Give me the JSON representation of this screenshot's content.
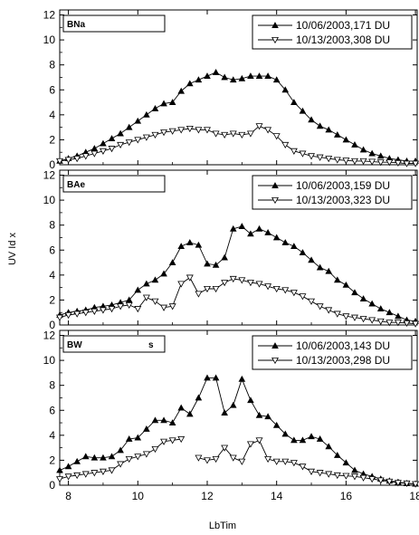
{
  "figure": {
    "xlabel": "LbTim",
    "ylabel": "UV Id    x"
  },
  "chart_data": [
    {
      "type": "line",
      "title": "BNa",
      "xlim": [
        7.75,
        18.05
      ],
      "ylim": [
        0,
        12.4
      ],
      "xticks": [
        8,
        10,
        12,
        14,
        16,
        18
      ],
      "yticks": [
        0,
        2,
        4,
        6,
        8,
        10,
        12
      ],
      "grid": false,
      "legend_position": "top-right",
      "series": [
        {
          "name": "10/06/2003,171 DU",
          "marker": "triangle-up-filled",
          "x": [
            7.75,
            8.0,
            8.25,
            8.5,
            8.75,
            9.0,
            9.25,
            9.5,
            9.75,
            10.0,
            10.25,
            10.5,
            10.75,
            11.0,
            11.25,
            11.5,
            11.75,
            12.0,
            12.25,
            12.5,
            12.75,
            13.0,
            13.25,
            13.5,
            13.75,
            14.0,
            14.25,
            14.5,
            14.75,
            15.0,
            15.25,
            15.5,
            15.75,
            16.0,
            16.25,
            16.5,
            16.75,
            17.0,
            17.25,
            17.5,
            17.75,
            18.0
          ],
          "y": [
            0.3,
            0.5,
            0.7,
            1.0,
            1.3,
            1.7,
            2.1,
            2.5,
            3.0,
            3.5,
            4.0,
            4.5,
            4.9,
            5.0,
            5.9,
            6.5,
            6.8,
            7.1,
            7.4,
            7.0,
            6.8,
            6.9,
            7.1,
            7.1,
            7.1,
            6.8,
            6.0,
            5.0,
            4.3,
            3.6,
            3.1,
            2.8,
            2.4,
            2.0,
            1.6,
            1.2,
            0.9,
            0.7,
            0.5,
            0.4,
            0.3,
            0.3
          ]
        },
        {
          "name": "10/13/2003,308 DU",
          "marker": "triangle-down-open",
          "x": [
            7.75,
            8.0,
            8.25,
            8.5,
            8.75,
            9.0,
            9.25,
            9.5,
            9.75,
            10.0,
            10.25,
            10.5,
            10.75,
            11.0,
            11.25,
            11.5,
            11.75,
            12.0,
            12.25,
            12.5,
            12.75,
            13.0,
            13.25,
            13.5,
            13.75,
            14.0,
            14.25,
            14.5,
            14.75,
            15.0,
            15.25,
            15.5,
            15.75,
            16.0,
            16.25,
            16.5,
            16.75,
            17.0,
            17.25,
            17.5,
            17.75,
            18.0
          ],
          "y": [
            0.3,
            0.4,
            0.5,
            0.7,
            0.9,
            1.1,
            1.3,
            1.6,
            1.8,
            2.0,
            2.2,
            2.4,
            2.6,
            2.7,
            2.8,
            2.9,
            2.8,
            2.8,
            2.5,
            2.4,
            2.5,
            2.4,
            2.5,
            3.1,
            2.8,
            2.3,
            1.6,
            1.1,
            0.9,
            0.7,
            0.6,
            0.5,
            0.4,
            0.35,
            0.3,
            0.3,
            0.25,
            0.2,
            0.2,
            0.15,
            0.1,
            0.1
          ]
        }
      ]
    },
    {
      "type": "line",
      "title": "BAe",
      "xlim": [
        7.75,
        18.05
      ],
      "ylim": [
        0,
        12.4
      ],
      "xticks": [
        8,
        10,
        12,
        14,
        16,
        18
      ],
      "yticks": [
        0,
        2,
        4,
        6,
        8,
        10,
        12
      ],
      "grid": false,
      "legend_position": "top-right",
      "series": [
        {
          "name": "10/06/2003,159 DU",
          "marker": "triangle-up-filled",
          "x": [
            7.75,
            8.0,
            8.25,
            8.5,
            8.75,
            9.0,
            9.25,
            9.5,
            9.75,
            10.0,
            10.25,
            10.5,
            10.75,
            11.0,
            11.25,
            11.5,
            11.75,
            12.0,
            12.25,
            12.5,
            12.75,
            13.0,
            13.25,
            13.5,
            13.75,
            14.0,
            14.25,
            14.5,
            14.75,
            15.0,
            15.25,
            15.5,
            15.75,
            16.0,
            16.25,
            16.5,
            16.75,
            17.0,
            17.25,
            17.5,
            17.75,
            18.0
          ],
          "y": [
            0.8,
            1.0,
            1.1,
            1.2,
            1.4,
            1.5,
            1.6,
            1.8,
            2.0,
            2.8,
            3.3,
            3.6,
            4.1,
            5.0,
            6.3,
            6.6,
            6.4,
            4.9,
            4.8,
            5.4,
            7.7,
            7.9,
            7.3,
            7.7,
            7.4,
            7.0,
            6.6,
            6.3,
            5.8,
            5.2,
            4.6,
            4.3,
            3.6,
            3.2,
            2.6,
            2.1,
            1.7,
            1.3,
            1.0,
            0.7,
            0.4,
            0.3
          ]
        },
        {
          "name": "10/13/2003,323 DU",
          "marker": "triangle-down-open",
          "x": [
            7.75,
            8.0,
            8.25,
            8.5,
            8.75,
            9.0,
            9.25,
            9.5,
            9.75,
            10.0,
            10.25,
            10.5,
            10.75,
            11.0,
            11.25,
            11.5,
            11.75,
            12.0,
            12.25,
            12.5,
            12.75,
            13.0,
            13.25,
            13.5,
            13.75,
            14.0,
            14.25,
            14.5,
            14.75,
            15.0,
            15.25,
            15.5,
            15.75,
            16.0,
            16.25,
            16.5,
            16.75,
            17.0,
            17.25,
            17.5,
            17.75,
            18.0
          ],
          "y": [
            0.6,
            0.8,
            0.9,
            1.0,
            1.1,
            1.2,
            1.3,
            1.5,
            1.6,
            1.3,
            2.2,
            1.9,
            1.4,
            1.5,
            3.3,
            3.8,
            2.5,
            2.9,
            2.9,
            3.4,
            3.7,
            3.6,
            3.4,
            3.3,
            3.1,
            2.9,
            2.8,
            2.6,
            2.3,
            1.9,
            1.5,
            1.2,
            0.9,
            0.7,
            0.6,
            0.5,
            0.4,
            0.3,
            0.2,
            0.2,
            0.15,
            0.1
          ]
        }
      ]
    },
    {
      "type": "line",
      "title": "BW",
      "subtitle": "s",
      "xlim": [
        7.75,
        18.05
      ],
      "ylim": [
        0,
        12.4
      ],
      "xticks": [
        8,
        10,
        12,
        14,
        16,
        18
      ],
      "yticks": [
        0,
        2,
        4,
        6,
        8,
        10,
        12
      ],
      "grid": false,
      "legend_position": "top-right",
      "series": [
        {
          "name": "10/06/2003,143 DU",
          "marker": "triangle-up-filled",
          "x": [
            7.75,
            8.0,
            8.25,
            8.5,
            8.75,
            9.0,
            9.25,
            9.5,
            9.75,
            10.0,
            10.25,
            10.5,
            10.75,
            11.0,
            11.25,
            11.5,
            11.75,
            12.0,
            12.25,
            12.5,
            12.75,
            13.0,
            13.25,
            13.5,
            13.75,
            14.0,
            14.25,
            14.5,
            14.75,
            15.0,
            15.25,
            15.5,
            15.75,
            16.0,
            16.25,
            16.5,
            16.75,
            17.0,
            17.25,
            17.5,
            17.75,
            18.0
          ],
          "y": [
            1.2,
            1.5,
            1.9,
            2.3,
            2.2,
            2.2,
            2.3,
            2.8,
            3.7,
            3.8,
            4.5,
            5.2,
            5.2,
            5.0,
            6.2,
            5.7,
            7.0,
            8.6,
            8.6,
            5.8,
            6.4,
            8.5,
            6.8,
            5.6,
            5.5,
            4.8,
            4.1,
            3.6,
            3.6,
            3.9,
            3.7,
            3.1,
            2.4,
            1.8,
            1.2,
            0.9,
            0.7,
            0.5,
            0.35,
            0.25,
            0.15,
            0.1
          ]
        },
        {
          "name": "10/13/2003,298 DU",
          "marker": "triangle-down-open",
          "segments": [
            {
              "x": [
                7.75,
                8.0,
                8.25,
                8.5,
                8.75,
                9.0,
                9.25,
                9.5,
                9.75,
                10.0,
                10.25,
                10.5,
                10.75,
                11.0,
                11.25
              ],
              "y": [
                0.5,
                0.7,
                0.8,
                0.9,
                1.0,
                1.1,
                1.2,
                1.7,
                2.1,
                2.3,
                2.5,
                2.9,
                3.5,
                3.6,
                3.7
              ]
            },
            {
              "x": [
                11.75,
                12.0,
                12.25,
                12.5,
                12.75,
                13.0,
                13.25,
                13.5,
                13.75,
                14.0,
                14.25,
                14.5,
                14.75,
                15.0,
                15.25,
                15.5,
                15.75,
                16.0,
                16.25,
                16.5,
                16.75,
                17.0,
                17.25,
                17.5,
                17.75,
                18.0
              ],
              "y": [
                2.2,
                2.0,
                2.1,
                3.0,
                2.2,
                1.9,
                3.3,
                3.6,
                2.1,
                1.9,
                1.9,
                1.8,
                1.5,
                1.1,
                1.0,
                0.9,
                0.8,
                0.75,
                0.7,
                0.6,
                0.5,
                0.4,
                0.3,
                0.2,
                0.15,
                0.1
              ]
            }
          ]
        }
      ]
    }
  ]
}
